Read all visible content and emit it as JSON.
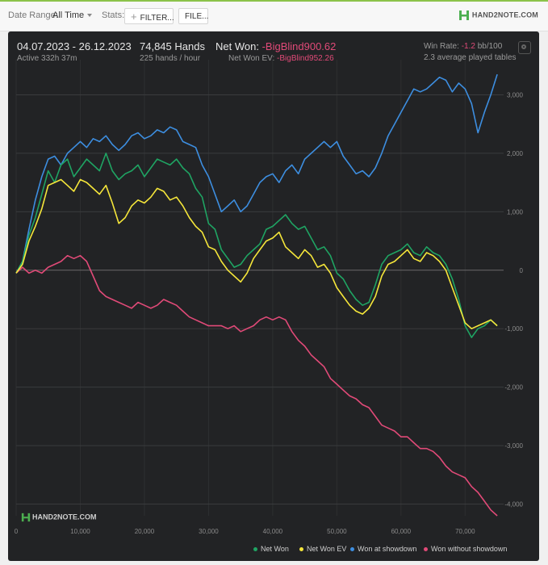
{
  "toolbar": {
    "date_range_label": "Date Range:",
    "date_range_value": "All Time",
    "stats_label": "Stats:",
    "filter_button": "FILTER...",
    "file_button": "FILE...",
    "brand": "HAND2NOTE.COM"
  },
  "summary": {
    "date_span": "04.07.2023 - 26.12.2023",
    "active": "Active 332h 37m",
    "hands": "74,845 Hands",
    "hands_per_hour": "225 hands / hour",
    "net_won_label": "Net Won:",
    "net_won_value": "-BigBlind900.62",
    "net_won_ev_label": "Net Won  EV:",
    "net_won_ev_value": "-BigBlind952.26",
    "win_rate_label": "Win Rate:",
    "win_rate_value": "-1.2",
    "win_rate_unit": "bb/100",
    "tables": "2.3 average played tables"
  },
  "watermark": "HAND2NOTE.COM",
  "colors": {
    "net_won": "#1fa463",
    "net_won_ev": "#f5e63a",
    "showdown": "#3d8ee0",
    "non_showdown": "#e14a78"
  },
  "chart_data": {
    "type": "line",
    "xlim": [
      0,
      76000
    ],
    "ylim": [
      -4200,
      3600
    ],
    "x_ticks": [
      0,
      10000,
      20000,
      30000,
      40000,
      50000,
      60000,
      70000
    ],
    "x_tick_labels": [
      "0",
      "10,000",
      "20,000",
      "30,000",
      "40,000",
      "50,000",
      "60,000",
      "70,000"
    ],
    "y_ticks": [
      3000,
      2000,
      1000,
      0,
      -1000,
      -2000,
      -3000,
      -4000
    ],
    "y_tick_labels": [
      "3,000",
      "2,000",
      "1,000",
      "0",
      "-1,000",
      "-2,000",
      "-3,000",
      "-4,000"
    ],
    "grid": true,
    "legend_position": "bottom-right",
    "series": [
      {
        "name": "Net Won",
        "x": [
          0,
          1000,
          2000,
          3000,
          4000,
          5000,
          6000,
          7000,
          8000,
          9000,
          10000,
          11000,
          12000,
          13000,
          14000,
          15000,
          16000,
          17000,
          18000,
          19000,
          20000,
          21000,
          22000,
          23000,
          24000,
          25000,
          26000,
          27000,
          28000,
          29000,
          30000,
          31000,
          32000,
          33000,
          34000,
          35000,
          36000,
          37000,
          38000,
          39000,
          40000,
          41000,
          42000,
          43000,
          44000,
          45000,
          46000,
          47000,
          48000,
          49000,
          50000,
          51000,
          52000,
          53000,
          54000,
          55000,
          56000,
          57000,
          58000,
          59000,
          60000,
          61000,
          62000,
          63000,
          64000,
          65000,
          66000,
          67000,
          68000,
          69000,
          70000,
          71000,
          72000,
          73000,
          74000,
          75000
        ],
        "y": [
          -50,
          150,
          600,
          900,
          1300,
          1700,
          1500,
          1800,
          1900,
          1600,
          1750,
          1900,
          1800,
          1700,
          2000,
          1700,
          1550,
          1650,
          1700,
          1800,
          1600,
          1750,
          1900,
          1850,
          1800,
          1900,
          1750,
          1650,
          1400,
          1250,
          800,
          700,
          350,
          200,
          50,
          100,
          250,
          350,
          450,
          700,
          750,
          850,
          950,
          800,
          700,
          750,
          550,
          350,
          400,
          250,
          -50,
          -150,
          -350,
          -500,
          -600,
          -550,
          -250,
          100,
          250,
          300,
          350,
          450,
          300,
          250,
          400,
          300,
          250,
          100,
          -150,
          -500,
          -950,
          -1150,
          -1000,
          -950,
          -850,
          -950
        ]
      },
      {
        "name": "Net Won  EV",
        "x": [
          0,
          1000,
          2000,
          3000,
          4000,
          5000,
          6000,
          7000,
          8000,
          9000,
          10000,
          11000,
          12000,
          13000,
          14000,
          15000,
          16000,
          17000,
          18000,
          19000,
          20000,
          21000,
          22000,
          23000,
          24000,
          25000,
          26000,
          27000,
          28000,
          29000,
          30000,
          31000,
          32000,
          33000,
          34000,
          35000,
          36000,
          37000,
          38000,
          39000,
          40000,
          41000,
          42000,
          43000,
          44000,
          45000,
          46000,
          47000,
          48000,
          49000,
          50000,
          51000,
          52000,
          53000,
          54000,
          55000,
          56000,
          57000,
          58000,
          59000,
          60000,
          61000,
          62000,
          63000,
          64000,
          65000,
          66000,
          67000,
          68000,
          69000,
          70000,
          71000,
          72000,
          73000,
          74000,
          75000
        ],
        "y": [
          -50,
          100,
          500,
          750,
          1050,
          1450,
          1500,
          1550,
          1450,
          1350,
          1550,
          1500,
          1400,
          1300,
          1450,
          1150,
          800,
          900,
          1100,
          1200,
          1150,
          1250,
          1400,
          1350,
          1200,
          1250,
          1100,
          900,
          750,
          650,
          400,
          350,
          150,
          0,
          -100,
          -200,
          -50,
          200,
          350,
          500,
          550,
          650,
          400,
          300,
          200,
          350,
          250,
          50,
          100,
          -50,
          -300,
          -450,
          -600,
          -700,
          -750,
          -650,
          -450,
          -100,
          100,
          150,
          250,
          350,
          200,
          150,
          300,
          250,
          150,
          0,
          -300,
          -600,
          -900,
          -1000,
          -950,
          -900,
          -850,
          -950
        ]
      },
      {
        "name": "Won at showdown",
        "x": [
          0,
          1000,
          2000,
          3000,
          4000,
          5000,
          6000,
          7000,
          8000,
          9000,
          10000,
          11000,
          12000,
          13000,
          14000,
          15000,
          16000,
          17000,
          18000,
          19000,
          20000,
          21000,
          22000,
          23000,
          24000,
          25000,
          26000,
          27000,
          28000,
          29000,
          30000,
          31000,
          32000,
          33000,
          34000,
          35000,
          36000,
          37000,
          38000,
          39000,
          40000,
          41000,
          42000,
          43000,
          44000,
          45000,
          46000,
          47000,
          48000,
          49000,
          50000,
          51000,
          52000,
          53000,
          54000,
          55000,
          56000,
          57000,
          58000,
          59000,
          60000,
          61000,
          62000,
          63000,
          64000,
          65000,
          66000,
          67000,
          68000,
          69000,
          70000,
          71000,
          72000,
          73000,
          74000,
          75000
        ],
        "y": [
          -50,
          150,
          700,
          1200,
          1600,
          1900,
          1950,
          1800,
          2000,
          2100,
          2200,
          2100,
          2250,
          2200,
          2300,
          2150,
          2050,
          2150,
          2300,
          2350,
          2250,
          2300,
          2400,
          2350,
          2450,
          2400,
          2200,
          2150,
          2100,
          1800,
          1600,
          1300,
          1000,
          1100,
          1200,
          1000,
          1100,
          1300,
          1500,
          1600,
          1650,
          1500,
          1700,
          1800,
          1650,
          1900,
          2000,
          2100,
          2200,
          2100,
          2200,
          1950,
          1800,
          1650,
          1700,
          1600,
          1750,
          2000,
          2300,
          2500,
          2700,
          2900,
          3100,
          3050,
          3100,
          3200,
          3300,
          3250,
          3050,
          3200,
          3100,
          2850,
          2350,
          2700,
          3000,
          3350
        ]
      },
      {
        "name": "Won without showdown",
        "x": [
          0,
          1000,
          2000,
          3000,
          4000,
          5000,
          6000,
          7000,
          8000,
          9000,
          10000,
          11000,
          12000,
          13000,
          14000,
          15000,
          16000,
          17000,
          18000,
          19000,
          20000,
          21000,
          22000,
          23000,
          24000,
          25000,
          26000,
          27000,
          28000,
          29000,
          30000,
          31000,
          32000,
          33000,
          34000,
          35000,
          36000,
          37000,
          38000,
          39000,
          40000,
          41000,
          42000,
          43000,
          44000,
          45000,
          46000,
          47000,
          48000,
          49000,
          50000,
          51000,
          52000,
          53000,
          54000,
          55000,
          56000,
          57000,
          58000,
          59000,
          60000,
          61000,
          62000,
          63000,
          64000,
          65000,
          66000,
          67000,
          68000,
          69000,
          70000,
          71000,
          72000,
          73000,
          74000,
          75000
        ],
        "y": [
          -50,
          50,
          -50,
          0,
          -50,
          50,
          100,
          150,
          250,
          200,
          250,
          150,
          -100,
          -350,
          -450,
          -500,
          -550,
          -600,
          -650,
          -550,
          -600,
          -650,
          -600,
          -500,
          -550,
          -600,
          -700,
          -800,
          -850,
          -900,
          -950,
          -950,
          -950,
          -1000,
          -950,
          -1050,
          -1000,
          -950,
          -850,
          -800,
          -850,
          -800,
          -850,
          -1050,
          -1200,
          -1300,
          -1450,
          -1550,
          -1650,
          -1850,
          -1950,
          -2050,
          -2150,
          -2200,
          -2300,
          -2350,
          -2500,
          -2650,
          -2700,
          -2750,
          -2850,
          -2850,
          -2950,
          -3050,
          -3050,
          -3100,
          -3200,
          -3350,
          -3450,
          -3500,
          -3550,
          -3700,
          -3800,
          -3950,
          -4100,
          -4200
        ]
      }
    ]
  }
}
